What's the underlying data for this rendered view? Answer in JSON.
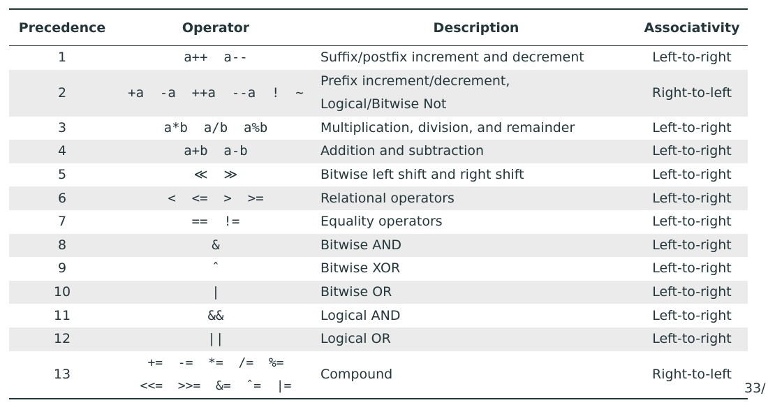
{
  "table": {
    "headers": {
      "precedence": "Precedence",
      "operator": "Operator",
      "description": "Description",
      "associativity": "Associativity"
    },
    "rows": [
      {
        "precedence": "1",
        "operator": "a++  a--",
        "description": "Suffix/postfix increment and decrement",
        "associativity": "Left-to-right"
      },
      {
        "precedence": "2",
        "operator": "+a  -a  ++a  --a  !  ∼",
        "description_lines": [
          "Prefix increment/decrement,",
          "Logical/Bitwise Not"
        ],
        "associativity": "Right-to-left"
      },
      {
        "precedence": "3",
        "operator": "a*b  a/b  a%b",
        "description": "Multiplication, division, and remainder",
        "associativity": "Left-to-right"
      },
      {
        "precedence": "4",
        "operator": "a+b  a-b",
        "description": "Addition and subtraction",
        "associativity": "Left-to-right"
      },
      {
        "precedence": "5",
        "operator": "≪  ≫",
        "description": "Bitwise left shift and right shift",
        "associativity": "Left-to-right"
      },
      {
        "precedence": "6",
        "operator": "<  <=  >  >=",
        "description": "Relational operators",
        "associativity": "Left-to-right"
      },
      {
        "precedence": "7",
        "operator": "==  !=",
        "description": "Equality operators",
        "associativity": "Left-to-right"
      },
      {
        "precedence": "8",
        "operator": "&",
        "description": "Bitwise AND",
        "associativity": "Left-to-right"
      },
      {
        "precedence": "9",
        "operator": "ˆ",
        "description": "Bitwise XOR",
        "associativity": "Left-to-right"
      },
      {
        "precedence": "10",
        "operator": "|",
        "description": "Bitwise OR",
        "associativity": "Left-to-right"
      },
      {
        "precedence": "11",
        "operator": "&&",
        "description": "Logical AND",
        "associativity": "Left-to-right"
      },
      {
        "precedence": "12",
        "operator": "||",
        "description": "Logical OR",
        "associativity": "Left-to-right"
      },
      {
        "precedence": "13",
        "operator_lines": [
          "+=  -=  *=  /=  %=",
          "<<=  >>=  &=  ˆ=  |="
        ],
        "description": "Compound",
        "associativity": "Right-to-left"
      }
    ]
  },
  "page_number": "33/",
  "colors": {
    "text": "#23373b",
    "row_shading": "#ebebeb",
    "background": "#ffffff"
  }
}
